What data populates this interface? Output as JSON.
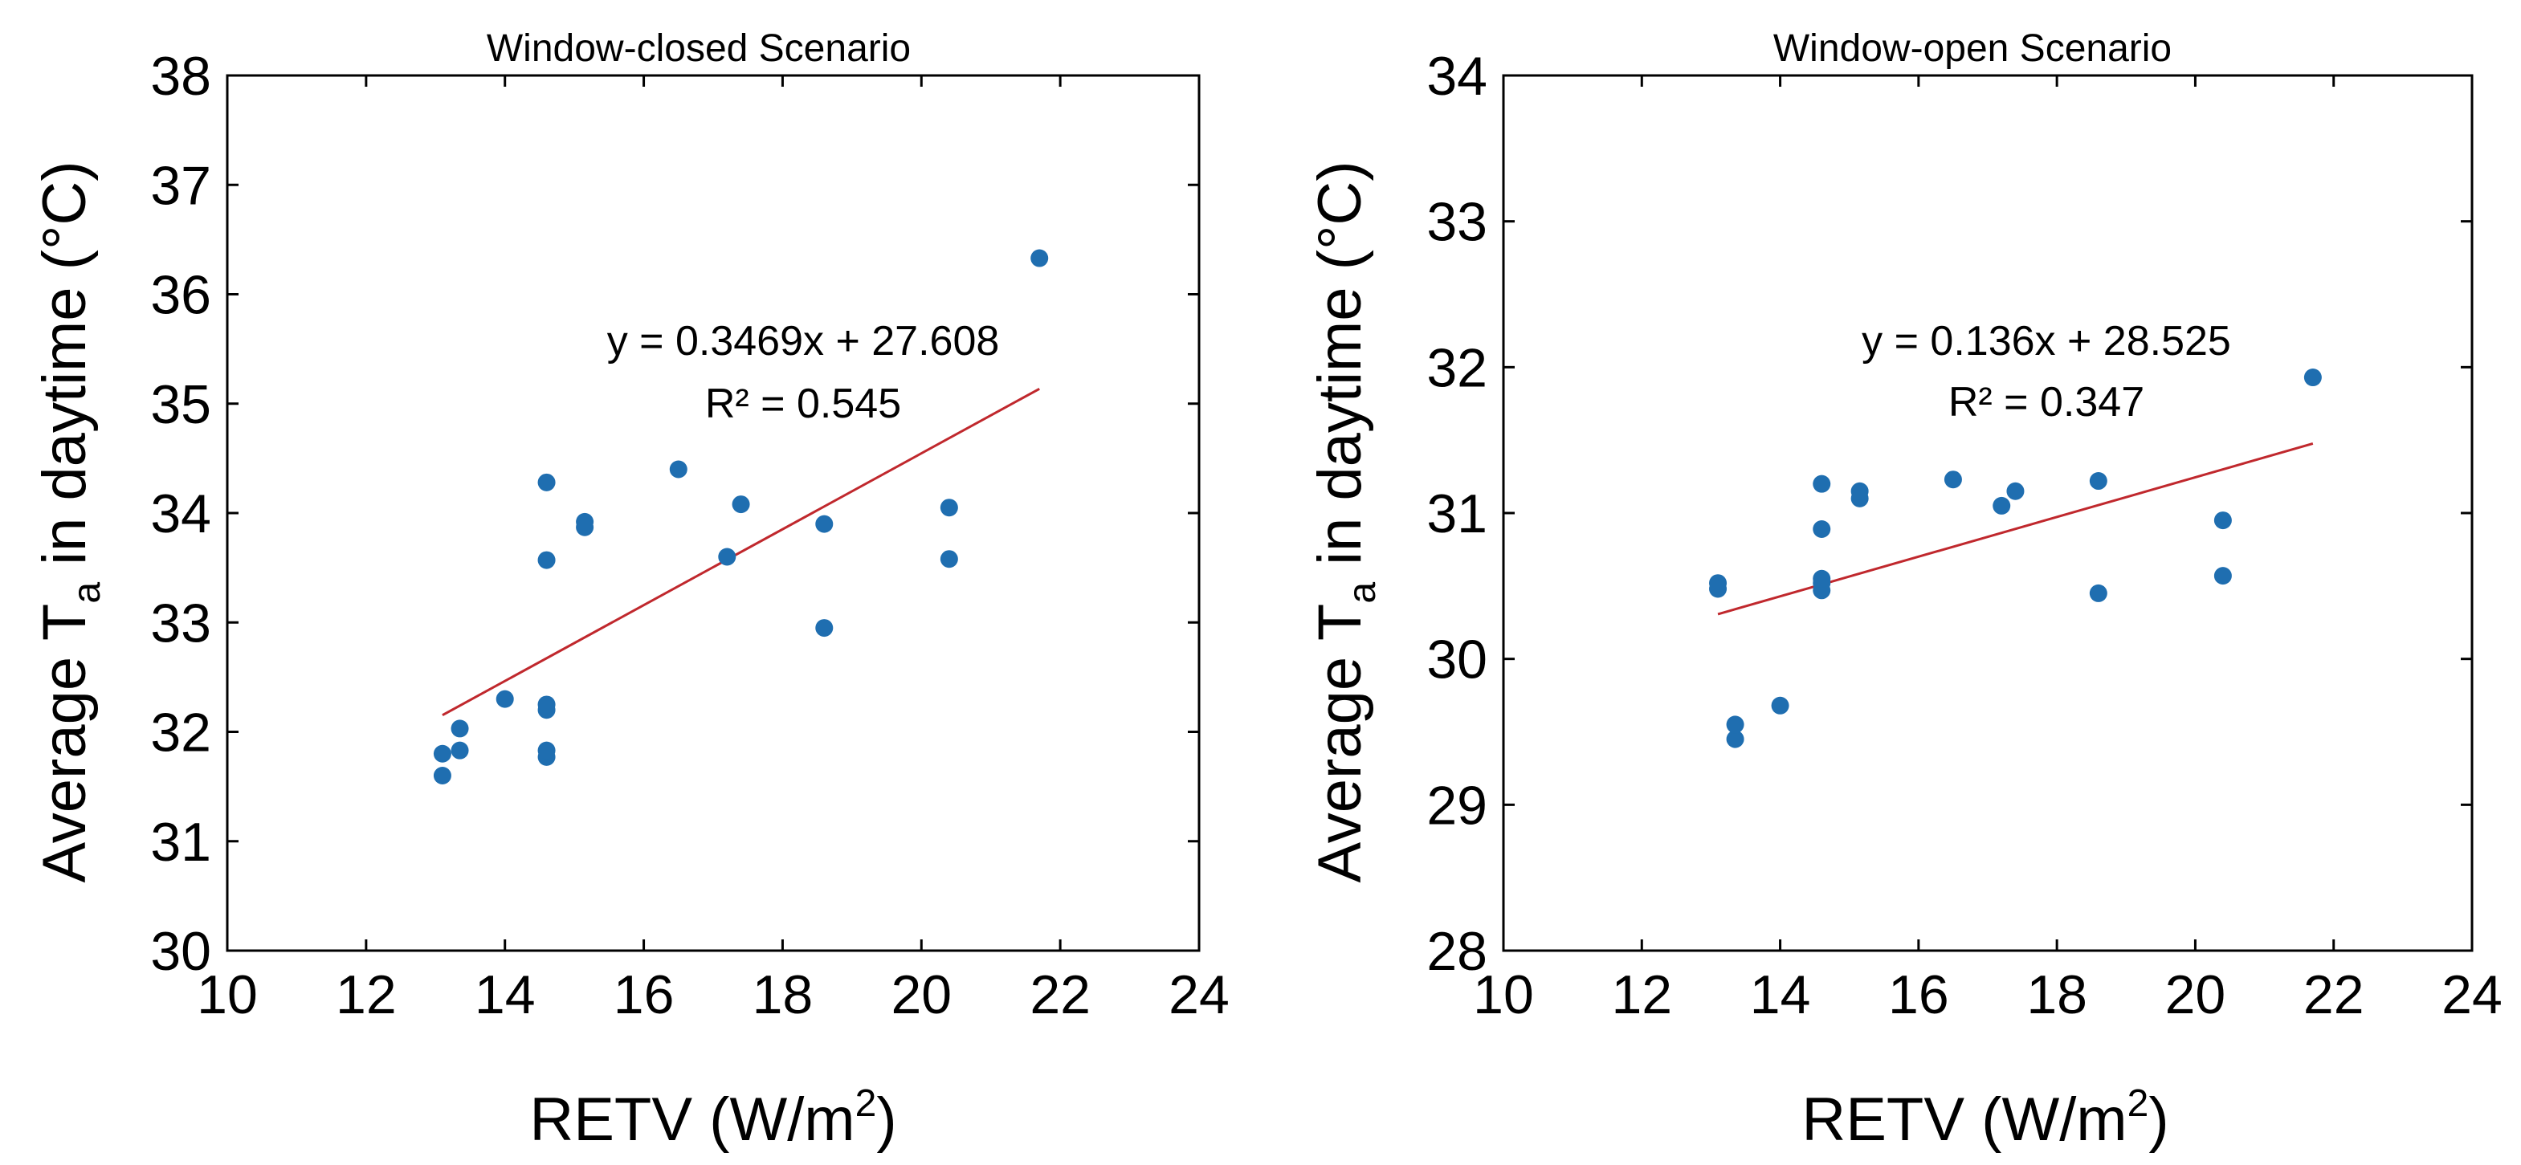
{
  "colors": {
    "point": "#1f6eb0",
    "trend": "#c0282d",
    "axis": "#000000",
    "background": "#ffffff"
  },
  "chart_data": [
    {
      "type": "scatter",
      "title": "Window-closed Scenario",
      "xlabel": "RETV (W/m",
      "xlabel_sup": "2",
      "xlabel_end": ")",
      "ylabel": "Average T",
      "ylabel_sub": "a",
      "ylabel_end": " in daytime (°C)",
      "xlim": [
        10,
        24
      ],
      "ylim": [
        30,
        38
      ],
      "xticks": [
        "10",
        "12",
        "14",
        "16",
        "18",
        "20",
        "22",
        "24"
      ],
      "yticks": [
        "30",
        "31",
        "32",
        "33",
        "34",
        "35",
        "36",
        "37",
        "38"
      ],
      "points": [
        {
          "x": 13.1,
          "y": 31.6
        },
        {
          "x": 13.1,
          "y": 31.8
        },
        {
          "x": 13.35,
          "y": 31.83
        },
        {
          "x": 13.35,
          "y": 32.03
        },
        {
          "x": 14.0,
          "y": 32.3
        },
        {
          "x": 14.6,
          "y": 31.77
        },
        {
          "x": 14.6,
          "y": 31.83
        },
        {
          "x": 14.6,
          "y": 32.2
        },
        {
          "x": 14.6,
          "y": 32.25
        },
        {
          "x": 14.6,
          "y": 33.57
        },
        {
          "x": 14.6,
          "y": 34.28
        },
        {
          "x": 15.15,
          "y": 33.87
        },
        {
          "x": 15.15,
          "y": 33.92
        },
        {
          "x": 16.5,
          "y": 34.4
        },
        {
          "x": 17.2,
          "y": 33.6
        },
        {
          "x": 17.4,
          "y": 34.08
        },
        {
          "x": 18.6,
          "y": 32.95
        },
        {
          "x": 18.6,
          "y": 33.9
        },
        {
          "x": 20.4,
          "y": 33.58
        },
        {
          "x": 20.4,
          "y": 34.05
        },
        {
          "x": 21.7,
          "y": 36.33
        }
      ],
      "trendline": {
        "slope": 0.3469,
        "intercept": 27.608,
        "x_range": [
          13.1,
          21.7
        ]
      },
      "annotations": {
        "equation": "y = 0.3469x + 27.608",
        "r2": "R² = 0.545"
      }
    },
    {
      "type": "scatter",
      "title": "Window-open Scenario",
      "xlabel": "RETV (W/m",
      "xlabel_sup": "2",
      "xlabel_end": ")",
      "ylabel": "Average T",
      "ylabel_sub": "a",
      "ylabel_end": " in daytime (°C)",
      "xlim": [
        10,
        24
      ],
      "ylim": [
        28,
        34
      ],
      "xticks": [
        "10",
        "12",
        "14",
        "16",
        "18",
        "20",
        "22",
        "24"
      ],
      "yticks": [
        "28",
        "29",
        "30",
        "31",
        "32",
        "33",
        "34"
      ],
      "points": [
        {
          "x": 13.1,
          "y": 30.48
        },
        {
          "x": 13.1,
          "y": 30.52
        },
        {
          "x": 13.35,
          "y": 29.45
        },
        {
          "x": 13.35,
          "y": 29.55
        },
        {
          "x": 14.0,
          "y": 29.68
        },
        {
          "x": 14.6,
          "y": 30.47
        },
        {
          "x": 14.6,
          "y": 30.52
        },
        {
          "x": 14.6,
          "y": 30.55
        },
        {
          "x": 14.6,
          "y": 30.89
        },
        {
          "x": 14.6,
          "y": 31.2
        },
        {
          "x": 15.15,
          "y": 31.1
        },
        {
          "x": 15.15,
          "y": 31.15
        },
        {
          "x": 16.5,
          "y": 31.23
        },
        {
          "x": 17.2,
          "y": 31.05
        },
        {
          "x": 17.4,
          "y": 31.15
        },
        {
          "x": 18.6,
          "y": 30.45
        },
        {
          "x": 18.6,
          "y": 31.22
        },
        {
          "x": 20.4,
          "y": 30.57
        },
        {
          "x": 20.4,
          "y": 30.95
        },
        {
          "x": 21.7,
          "y": 31.93
        }
      ],
      "trendline": {
        "slope": 0.136,
        "intercept": 28.525,
        "x_range": [
          13.1,
          21.7
        ]
      },
      "annotations": {
        "equation": "y = 0.136x + 28.525",
        "r2": "R² = 0.347"
      }
    }
  ]
}
